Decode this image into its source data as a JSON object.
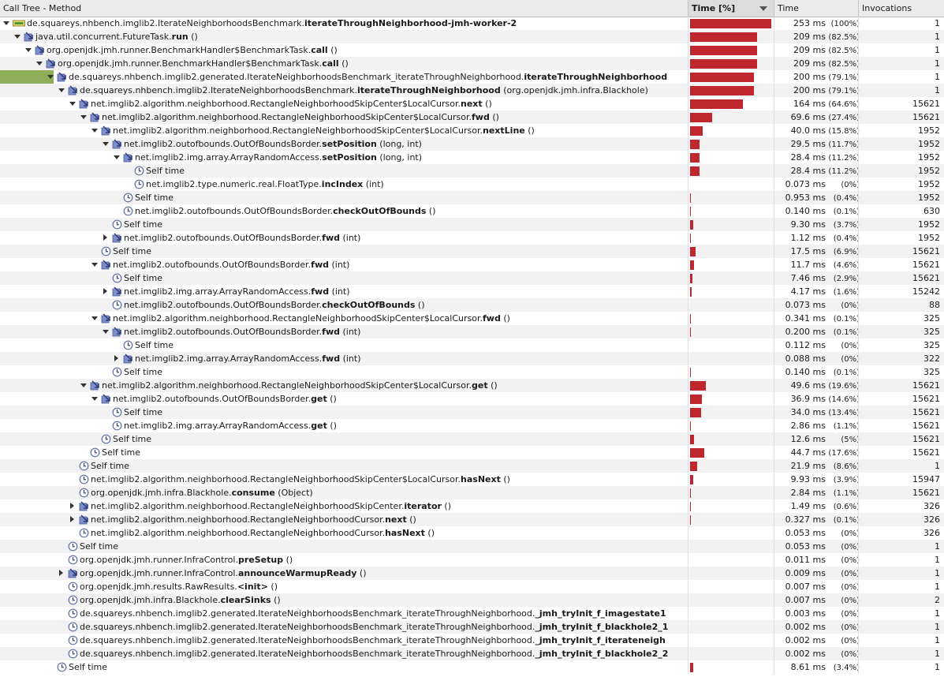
{
  "header": {
    "method": "Call Tree - Method",
    "time_pct": "Time [%]",
    "time": "Time",
    "invocations": "Invocations"
  },
  "rows": [
    {
      "depth": 0,
      "toggle": "expanded",
      "icon": "thread",
      "pkg": "de.squareys.nhbench.imglib2.IterateNeighborhoodsBenchmark.",
      "method": "iterateThroughNeighborhood-jmh-worker-2",
      "args": "",
      "pct": 100,
      "time": "253 ms",
      "pctText": "(100%)",
      "inv": "1"
    },
    {
      "depth": 1,
      "toggle": "expanded",
      "icon": "method",
      "pkg": "java.util.concurrent.FutureTask.",
      "method": "run",
      "args": " ()",
      "pct": 82.5,
      "time": "209 ms",
      "pctText": "(82.5%)",
      "inv": "1"
    },
    {
      "depth": 2,
      "toggle": "expanded",
      "icon": "method",
      "pkg": "org.openjdk.jmh.runner.BenchmarkHandler$BenchmarkTask.",
      "method": "call",
      "args": " ()",
      "pct": 82.5,
      "time": "209 ms",
      "pctText": "(82.5%)",
      "inv": "1"
    },
    {
      "depth": 3,
      "toggle": "expanded",
      "icon": "method",
      "pkg": "org.openjdk.jmh.runner.BenchmarkHandler$BenchmarkTask.",
      "method": "call",
      "args": " ()",
      "pct": 82.5,
      "time": "209 ms",
      "pctText": "(82.5%)",
      "inv": "1"
    },
    {
      "depth": 4,
      "toggle": "expanded",
      "icon": "method",
      "highlight": true,
      "pkg": "de.squareys.nhbench.imglib2.generated.IterateNeighborhoodsBenchmark_iterateThroughNeighborhood.",
      "method": "iterateThroughNeighborhood",
      "args": "",
      "pct": 79.1,
      "time": "200 ms",
      "pctText": "(79.1%)",
      "inv": "1"
    },
    {
      "depth": 5,
      "toggle": "expanded",
      "icon": "method",
      "pkg": "de.squareys.nhbench.imglib2.IterateNeighborhoodsBenchmark.",
      "method": "iterateThroughNeighborhood",
      "args": " (org.openjdk.jmh.infra.Blackhole)",
      "pct": 79.1,
      "time": "200 ms",
      "pctText": "(79.1%)",
      "inv": "1"
    },
    {
      "depth": 6,
      "toggle": "expanded",
      "icon": "method",
      "pkg": "net.imglib2.algorithm.neighborhood.RectangleNeighborhoodSkipCenter$LocalCursor.",
      "method": "next",
      "args": " ()",
      "pct": 64.6,
      "time": "164 ms",
      "pctText": "(64.6%)",
      "inv": "15621"
    },
    {
      "depth": 7,
      "toggle": "expanded",
      "icon": "method",
      "pkg": "net.imglib2.algorithm.neighborhood.RectangleNeighborhoodSkipCenter$LocalCursor.",
      "method": "fwd",
      "args": " ()",
      "pct": 27.4,
      "time": "69.6 ms",
      "pctText": "(27.4%)",
      "inv": "15621"
    },
    {
      "depth": 8,
      "toggle": "expanded",
      "icon": "method",
      "pkg": "net.imglib2.algorithm.neighborhood.RectangleNeighborhoodSkipCenter$LocalCursor.",
      "method": "nextLine",
      "args": " ()",
      "pct": 15.8,
      "time": "40.0 ms",
      "pctText": "(15.8%)",
      "inv": "1952"
    },
    {
      "depth": 9,
      "toggle": "expanded",
      "icon": "method",
      "pkg": "net.imglib2.outofbounds.OutOfBoundsBorder.",
      "method": "setPosition",
      "args": " (long, int)",
      "pct": 11.7,
      "time": "29.5 ms",
      "pctText": "(11.7%)",
      "inv": "1952"
    },
    {
      "depth": 10,
      "toggle": "expanded",
      "icon": "method",
      "pkg": "net.imglib2.img.array.ArrayRandomAccess.",
      "method": "setPosition",
      "args": " (long, int)",
      "pct": 11.2,
      "time": "28.4 ms",
      "pctText": "(11.2%)",
      "inv": "1952"
    },
    {
      "depth": 11,
      "toggle": "none",
      "icon": "clock",
      "pkg": "Self time",
      "method": "",
      "args": "",
      "pct": 11.2,
      "time": "28.4 ms",
      "pctText": "(11.2%)",
      "inv": "1952"
    },
    {
      "depth": 11,
      "toggle": "none",
      "icon": "clock",
      "pkg": "net.imglib2.type.numeric.real.FloatType.",
      "method": "incIndex",
      "args": " (int)",
      "pct": 0,
      "time": "0.073 ms",
      "pctText": "(0%)",
      "inv": "1952"
    },
    {
      "depth": 10,
      "toggle": "none",
      "icon": "clock",
      "pkg": "Self time",
      "method": "",
      "args": "",
      "pct": 0.4,
      "time": "0.953 ms",
      "pctText": "(0.4%)",
      "inv": "1952"
    },
    {
      "depth": 10,
      "toggle": "none",
      "icon": "clock",
      "pkg": "net.imglib2.outofbounds.OutOfBoundsBorder.",
      "method": "checkOutOfBounds",
      "args": " ()",
      "pct": 0.1,
      "time": "0.140 ms",
      "pctText": "(0.1%)",
      "inv": "630"
    },
    {
      "depth": 9,
      "toggle": "none",
      "icon": "clock",
      "pkg": "Self time",
      "method": "",
      "args": "",
      "pct": 3.7,
      "time": "9.30 ms",
      "pctText": "(3.7%)",
      "inv": "1952"
    },
    {
      "depth": 9,
      "toggle": "collapsed",
      "icon": "method",
      "pkg": "net.imglib2.outofbounds.OutOfBoundsBorder.",
      "method": "fwd",
      "args": " (int)",
      "pct": 0.4,
      "time": "1.12 ms",
      "pctText": "(0.4%)",
      "inv": "1952"
    },
    {
      "depth": 8,
      "toggle": "none",
      "icon": "clock",
      "pkg": "Self time",
      "method": "",
      "args": "",
      "pct": 6.9,
      "time": "17.5 ms",
      "pctText": "(6.9%)",
      "inv": "15621"
    },
    {
      "depth": 8,
      "toggle": "expanded",
      "icon": "method",
      "pkg": "net.imglib2.outofbounds.OutOfBoundsBorder.",
      "method": "fwd",
      "args": " (int)",
      "pct": 4.6,
      "time": "11.7 ms",
      "pctText": "(4.6%)",
      "inv": "15621"
    },
    {
      "depth": 9,
      "toggle": "none",
      "icon": "clock",
      "pkg": "Self time",
      "method": "",
      "args": "",
      "pct": 2.9,
      "time": "7.46 ms",
      "pctText": "(2.9%)",
      "inv": "15621"
    },
    {
      "depth": 9,
      "toggle": "collapsed",
      "icon": "method",
      "pkg": "net.imglib2.img.array.ArrayRandomAccess.",
      "method": "fwd",
      "args": " (int)",
      "pct": 1.6,
      "time": "4.17 ms",
      "pctText": "(1.6%)",
      "inv": "15242"
    },
    {
      "depth": 9,
      "toggle": "none",
      "icon": "clock",
      "pkg": "net.imglib2.outofbounds.OutOfBoundsBorder.",
      "method": "checkOutOfBounds",
      "args": " ()",
      "pct": 0,
      "time": "0.073 ms",
      "pctText": "(0%)",
      "inv": "88"
    },
    {
      "depth": 8,
      "toggle": "expanded",
      "icon": "method",
      "pkg": "net.imglib2.algorithm.neighborhood.RectangleNeighborhoodSkipCenter$LocalCursor.",
      "method": "fwd",
      "args": " ()",
      "pct": 0.1,
      "time": "0.341 ms",
      "pctText": "(0.1%)",
      "inv": "325"
    },
    {
      "depth": 9,
      "toggle": "expanded",
      "icon": "method",
      "pkg": "net.imglib2.outofbounds.OutOfBoundsBorder.",
      "method": "fwd",
      "args": " (int)",
      "pct": 0.1,
      "time": "0.200 ms",
      "pctText": "(0.1%)",
      "inv": "325"
    },
    {
      "depth": 10,
      "toggle": "none",
      "icon": "clock",
      "pkg": "Self time",
      "method": "",
      "args": "",
      "pct": 0,
      "time": "0.112 ms",
      "pctText": "(0%)",
      "inv": "325"
    },
    {
      "depth": 10,
      "toggle": "collapsed",
      "icon": "method",
      "pkg": "net.imglib2.img.array.ArrayRandomAccess.",
      "method": "fwd",
      "args": " (int)",
      "pct": 0,
      "time": "0.088 ms",
      "pctText": "(0%)",
      "inv": "322"
    },
    {
      "depth": 9,
      "toggle": "none",
      "icon": "clock",
      "pkg": "Self time",
      "method": "",
      "args": "",
      "pct": 0.1,
      "time": "0.140 ms",
      "pctText": "(0.1%)",
      "inv": "325"
    },
    {
      "depth": 7,
      "toggle": "expanded",
      "icon": "method",
      "pkg": "net.imglib2.algorithm.neighborhood.RectangleNeighborhoodSkipCenter$LocalCursor.",
      "method": "get",
      "args": " ()",
      "pct": 19.6,
      "time": "49.6 ms",
      "pctText": "(19.6%)",
      "inv": "15621"
    },
    {
      "depth": 8,
      "toggle": "expanded",
      "icon": "method",
      "pkg": "net.imglib2.outofbounds.OutOfBoundsBorder.",
      "method": "get",
      "args": " ()",
      "pct": 14.6,
      "time": "36.9 ms",
      "pctText": "(14.6%)",
      "inv": "15621"
    },
    {
      "depth": 9,
      "toggle": "none",
      "icon": "clock",
      "pkg": "Self time",
      "method": "",
      "args": "",
      "pct": 13.4,
      "time": "34.0 ms",
      "pctText": "(13.4%)",
      "inv": "15621"
    },
    {
      "depth": 9,
      "toggle": "none",
      "icon": "clock",
      "pkg": "net.imglib2.img.array.ArrayRandomAccess.",
      "method": "get",
      "args": " ()",
      "pct": 1.1,
      "time": "2.86 ms",
      "pctText": "(1.1%)",
      "inv": "15621"
    },
    {
      "depth": 8,
      "toggle": "none",
      "icon": "clock",
      "pkg": "Self time",
      "method": "",
      "args": "",
      "pct": 5,
      "time": "12.6 ms",
      "pctText": "(5%)",
      "inv": "15621"
    },
    {
      "depth": 7,
      "toggle": "none",
      "icon": "clock",
      "pkg": "Self time",
      "method": "",
      "args": "",
      "pct": 17.6,
      "time": "44.7 ms",
      "pctText": "(17.6%)",
      "inv": "15621"
    },
    {
      "depth": 6,
      "toggle": "none",
      "icon": "clock",
      "pkg": "Self time",
      "method": "",
      "args": "",
      "pct": 8.6,
      "time": "21.9 ms",
      "pctText": "(8.6%)",
      "inv": "1"
    },
    {
      "depth": 6,
      "toggle": "none",
      "icon": "clock",
      "pkg": "net.imglib2.algorithm.neighborhood.RectangleNeighborhoodSkipCenter$LocalCursor.",
      "method": "hasNext",
      "args": " ()",
      "pct": 3.9,
      "time": "9.93 ms",
      "pctText": "(3.9%)",
      "inv": "15947"
    },
    {
      "depth": 6,
      "toggle": "none",
      "icon": "clock",
      "pkg": "org.openjdk.jmh.infra.Blackhole.",
      "method": "consume",
      "args": " (Object)",
      "pct": 1.1,
      "time": "2.84 ms",
      "pctText": "(1.1%)",
      "inv": "15621"
    },
    {
      "depth": 6,
      "toggle": "collapsed",
      "icon": "method",
      "pkg": "net.imglib2.algorithm.neighborhood.RectangleNeighborhoodSkipCenter.",
      "method": "iterator",
      "args": " ()",
      "pct": 0.6,
      "time": "1.49 ms",
      "pctText": "(0.6%)",
      "inv": "326"
    },
    {
      "depth": 6,
      "toggle": "collapsed",
      "icon": "method",
      "pkg": "net.imglib2.algorithm.neighborhood.RectangleNeighborhoodCursor.",
      "method": "next",
      "args": " ()",
      "pct": 0.1,
      "time": "0.327 ms",
      "pctText": "(0.1%)",
      "inv": "326"
    },
    {
      "depth": 6,
      "toggle": "none",
      "icon": "clock",
      "pkg": "net.imglib2.algorithm.neighborhood.RectangleNeighborhoodCursor.",
      "method": "hasNext",
      "args": " ()",
      "pct": 0,
      "time": "0.053 ms",
      "pctText": "(0%)",
      "inv": "326"
    },
    {
      "depth": 5,
      "toggle": "none",
      "icon": "clock",
      "pkg": "Self time",
      "method": "",
      "args": "",
      "pct": 0,
      "time": "0.053 ms",
      "pctText": "(0%)",
      "inv": "1"
    },
    {
      "depth": 5,
      "toggle": "none",
      "icon": "clock",
      "pkg": "org.openjdk.jmh.runner.InfraControl.",
      "method": "preSetup",
      "args": " ()",
      "pct": 0,
      "time": "0.011 ms",
      "pctText": "(0%)",
      "inv": "1"
    },
    {
      "depth": 5,
      "toggle": "collapsed",
      "icon": "method",
      "pkg": "org.openjdk.jmh.runner.InfraControl.",
      "method": "announceWarmupReady",
      "args": " ()",
      "pct": 0,
      "time": "0.009 ms",
      "pctText": "(0%)",
      "inv": "1"
    },
    {
      "depth": 5,
      "toggle": "none",
      "icon": "clock",
      "pkg": "org.openjdk.jmh.results.RawResults.",
      "method": "<init>",
      "args": " ()",
      "pct": 0,
      "time": "0.007 ms",
      "pctText": "(0%)",
      "inv": "1"
    },
    {
      "depth": 5,
      "toggle": "none",
      "icon": "clock",
      "pkg": "org.openjdk.jmh.infra.Blackhole.",
      "method": "clearSinks",
      "args": " ()",
      "pct": 0,
      "time": "0.007 ms",
      "pctText": "(0%)",
      "inv": "2"
    },
    {
      "depth": 5,
      "toggle": "none",
      "icon": "clock",
      "pkg": "de.squareys.nhbench.imglib2.generated.IterateNeighborhoodsBenchmark_iterateThroughNeighborhood.",
      "method": "_jmh_tryInit_f_imagestate1",
      "args": "",
      "pct": 0,
      "time": "0.003 ms",
      "pctText": "(0%)",
      "inv": "1"
    },
    {
      "depth": 5,
      "toggle": "none",
      "icon": "clock",
      "pkg": "de.squareys.nhbench.imglib2.generated.IterateNeighborhoodsBenchmark_iterateThroughNeighborhood.",
      "method": "_jmh_tryInit_f_blackhole2_1",
      "args": "",
      "pct": 0,
      "time": "0.002 ms",
      "pctText": "(0%)",
      "inv": "1"
    },
    {
      "depth": 5,
      "toggle": "none",
      "icon": "clock",
      "pkg": "de.squareys.nhbench.imglib2.generated.IterateNeighborhoodsBenchmark_iterateThroughNeighborhood.",
      "method": "_jmh_tryInit_f_iterateneigh",
      "args": "",
      "pct": 0,
      "time": "0.002 ms",
      "pctText": "(0%)",
      "inv": "1"
    },
    {
      "depth": 5,
      "toggle": "none",
      "icon": "clock",
      "pkg": "de.squareys.nhbench.imglib2.generated.IterateNeighborhoodsBenchmark_iterateThroughNeighborhood.",
      "method": "_jmh_tryInit_f_blackhole2_2",
      "args": "",
      "pct": 0,
      "time": "0.002 ms",
      "pctText": "(0%)",
      "inv": "1"
    },
    {
      "depth": 4,
      "toggle": "none",
      "icon": "clock",
      "pkg": "Self time",
      "method": "",
      "args": "",
      "pct": 3.4,
      "time": "8.61 ms",
      "pctText": "(3.4%)",
      "inv": "1"
    }
  ]
}
